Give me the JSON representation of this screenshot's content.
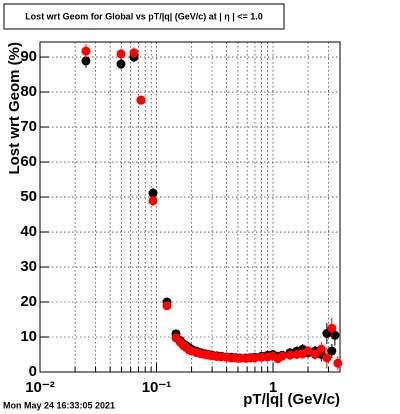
{
  "chart_data": {
    "type": "scatter",
    "title": "Lost wrt Geom for Global vs pT/|q| (GeV/c) at | η | <= 1.0",
    "x_label": "pT/|q| (GeV/c)",
    "y_label": "Lost wrt Geom (%)",
    "footer": "Mon May 24 16:33:05 2021",
    "xscale": "log",
    "xlim": [
      0.01,
      3.76
    ],
    "ylim": [
      0,
      94.3
    ],
    "xticks": [
      {
        "value": 0.01,
        "label": "10⁻²"
      },
      {
        "value": 0.1,
        "label": "10⁻¹"
      },
      1
    ],
    "xminorticks": [
      0.02,
      0.03,
      0.04,
      0.05,
      0.06,
      0.07,
      0.08,
      0.09,
      0.2,
      0.3,
      0.4,
      0.5,
      0.6,
      0.7,
      0.8,
      0.9,
      2,
      3
    ],
    "yticks": [
      0,
      10,
      20,
      30,
      40,
      50,
      60,
      70,
      80,
      90
    ],
    "grid": true,
    "series": [
      {
        "name": "Global",
        "color": "#000000",
        "x": [
          0.0248,
          0.0496,
          0.0641,
          0.0737,
          0.0933,
          0.123,
          0.147,
          0.16,
          0.17,
          0.18,
          0.19,
          0.2,
          0.22,
          0.24,
          0.26,
          0.28,
          0.3,
          0.33,
          0.36,
          0.4,
          0.44,
          0.48,
          0.52,
          0.58,
          0.64,
          0.7,
          0.8,
          0.9,
          1.0,
          1.1,
          1.2,
          1.4,
          1.6,
          1.8,
          2.0,
          2.3,
          2.6,
          2.9,
          3.2,
          3.4
        ],
        "values": [
          88.9,
          88.0,
          90.0,
          77.7,
          51.1,
          20.0,
          10.9,
          9,
          8,
          7.5,
          7,
          6.5,
          6,
          5.5,
          5.2,
          5,
          4.8,
          4.6,
          4.5,
          4.3,
          4.2,
          4.1,
          4.0,
          4.0,
          4.1,
          4.2,
          4.5,
          4.8,
          5,
          4.5,
          4.8,
          5.5,
          6,
          6.5,
          5.5,
          6,
          5,
          11,
          6,
          10.5
        ],
        "errors": [
          2,
          1.5,
          1.5,
          1,
          1.5,
          1,
          1,
          0.8,
          0.8,
          0.8,
          0.8,
          0.8,
          0.8,
          0.8,
          0.8,
          0.8,
          0.8,
          0.8,
          0.8,
          0.8,
          0.8,
          0.8,
          0.8,
          0.8,
          0.8,
          0.8,
          0.8,
          1,
          1,
          1,
          1,
          1.2,
          1.2,
          1.5,
          1.5,
          1.5,
          2,
          3,
          2,
          3
        ]
      },
      {
        "name": "Global (red)",
        "color": "#ff0000",
        "x": [
          0.0248,
          0.0496,
          0.0641,
          0.0737,
          0.0933,
          0.123,
          0.147,
          0.16,
          0.17,
          0.18,
          0.19,
          0.2,
          0.22,
          0.24,
          0.26,
          0.28,
          0.3,
          0.33,
          0.36,
          0.4,
          0.44,
          0.48,
          0.52,
          0.58,
          0.64,
          0.7,
          0.8,
          0.9,
          1.0,
          1.1,
          1.2,
          1.4,
          1.6,
          1.8,
          2.0,
          2.3,
          2.6,
          2.9,
          3.2,
          3.6
        ],
        "values": [
          91.7,
          90.9,
          91.2,
          77.7,
          48.9,
          18.9,
          9.7,
          8.5,
          7.5,
          7,
          6.3,
          6,
          5.5,
          5.2,
          5,
          4.8,
          4.6,
          4.4,
          4.3,
          4.2,
          4,
          4,
          3.9,
          3.9,
          4,
          4,
          4.2,
          4.3,
          4.5,
          3.8,
          4.5,
          4.8,
          5,
          5.2,
          6,
          5,
          6.5,
          4,
          12.5,
          2.5
        ],
        "errors": [
          2,
          1.5,
          1.5,
          1,
          1.5,
          1,
          1,
          0.8,
          0.8,
          0.8,
          0.8,
          0.8,
          0.8,
          0.8,
          0.8,
          0.8,
          0.8,
          0.8,
          0.8,
          0.8,
          0.8,
          0.8,
          0.8,
          0.8,
          0.8,
          0.8,
          0.8,
          1,
          1,
          1,
          1,
          1.2,
          1.2,
          1.5,
          1.5,
          1.5,
          2,
          3,
          3,
          2
        ]
      }
    ]
  }
}
